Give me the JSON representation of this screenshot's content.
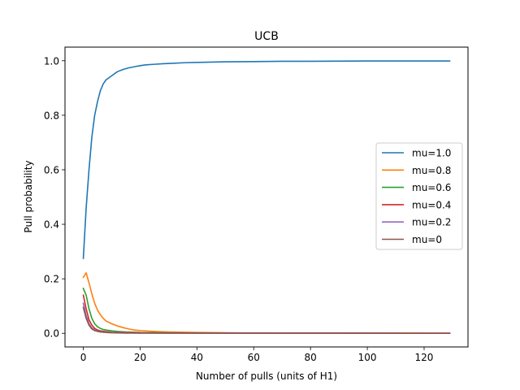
{
  "chart_data": {
    "type": "line",
    "title": "UCB",
    "xlabel": "Number of pulls (units of H1)",
    "ylabel": "Pull probability",
    "xlim": [
      -6.45,
      135.45
    ],
    "ylim": [
      -0.05,
      1.05
    ],
    "xticks": [
      0,
      20,
      40,
      60,
      80,
      100,
      120
    ],
    "yticks": [
      0.0,
      0.2,
      0.4,
      0.6,
      0.8,
      1.0
    ],
    "xtick_labels": [
      "0",
      "20",
      "40",
      "60",
      "80",
      "100",
      "120"
    ],
    "ytick_labels": [
      "0.0",
      "0.2",
      "0.4",
      "0.6",
      "0.8",
      "1.0"
    ],
    "grid": false,
    "legend_position": "center-right",
    "series": [
      {
        "name": "mu=1.0",
        "color": "#1f77b4",
        "points": [
          [
            0,
            0.275
          ],
          [
            1,
            0.46
          ],
          [
            2,
            0.6
          ],
          [
            3,
            0.72
          ],
          [
            4,
            0.8
          ],
          [
            5,
            0.85
          ],
          [
            6,
            0.89
          ],
          [
            7,
            0.915
          ],
          [
            8,
            0.93
          ],
          [
            10,
            0.945
          ],
          [
            12,
            0.96
          ],
          [
            14,
            0.968
          ],
          [
            16,
            0.974
          ],
          [
            18,
            0.978
          ],
          [
            20,
            0.982
          ],
          [
            22,
            0.985
          ],
          [
            25,
            0.987
          ],
          [
            28,
            0.989
          ],
          [
            32,
            0.991
          ],
          [
            36,
            0.993
          ],
          [
            40,
            0.994
          ],
          [
            45,
            0.995
          ],
          [
            50,
            0.996
          ],
          [
            60,
            0.997
          ],
          [
            70,
            0.998
          ],
          [
            80,
            0.998
          ],
          [
            100,
            0.999
          ],
          [
            129,
            0.999
          ]
        ]
      },
      {
        "name": "mu=0.8",
        "color": "#ff7f0e",
        "points": [
          [
            0,
            0.205
          ],
          [
            1,
            0.222
          ],
          [
            2,
            0.185
          ],
          [
            3,
            0.145
          ],
          [
            4,
            0.11
          ],
          [
            5,
            0.085
          ],
          [
            6,
            0.068
          ],
          [
            7,
            0.055
          ],
          [
            8,
            0.045
          ],
          [
            10,
            0.035
          ],
          [
            12,
            0.027
          ],
          [
            14,
            0.021
          ],
          [
            16,
            0.016
          ],
          [
            18,
            0.012
          ],
          [
            20,
            0.01
          ],
          [
            25,
            0.007
          ],
          [
            30,
            0.005
          ],
          [
            40,
            0.003
          ],
          [
            50,
            0.002
          ],
          [
            60,
            0.001
          ],
          [
            80,
            0.001
          ],
          [
            100,
            0.001
          ],
          [
            129,
            0.0
          ]
        ]
      },
      {
        "name": "mu=0.6",
        "color": "#2ca02c",
        "points": [
          [
            0,
            0.165
          ],
          [
            1,
            0.14
          ],
          [
            2,
            0.09
          ],
          [
            3,
            0.055
          ],
          [
            4,
            0.035
          ],
          [
            5,
            0.024
          ],
          [
            6,
            0.018
          ],
          [
            7,
            0.014
          ],
          [
            8,
            0.012
          ],
          [
            10,
            0.009
          ],
          [
            12,
            0.007
          ],
          [
            15,
            0.005
          ],
          [
            20,
            0.003
          ],
          [
            30,
            0.002
          ],
          [
            40,
            0.001
          ],
          [
            60,
            0.001
          ],
          [
            129,
            0.0
          ]
        ]
      },
      {
        "name": "mu=0.4",
        "color": "#d62728",
        "points": [
          [
            0,
            0.14
          ],
          [
            1,
            0.09
          ],
          [
            2,
            0.05
          ],
          [
            3,
            0.03
          ],
          [
            4,
            0.018
          ],
          [
            5,
            0.012
          ],
          [
            6,
            0.009
          ],
          [
            8,
            0.006
          ],
          [
            10,
            0.004
          ],
          [
            15,
            0.003
          ],
          [
            20,
            0.002
          ],
          [
            30,
            0.001
          ],
          [
            129,
            0.0
          ]
        ]
      },
      {
        "name": "mu=0.2",
        "color": "#9467bd",
        "points": [
          [
            0,
            0.11
          ],
          [
            1,
            0.065
          ],
          [
            2,
            0.035
          ],
          [
            3,
            0.02
          ],
          [
            4,
            0.012
          ],
          [
            5,
            0.008
          ],
          [
            6,
            0.006
          ],
          [
            8,
            0.004
          ],
          [
            10,
            0.003
          ],
          [
            15,
            0.002
          ],
          [
            20,
            0.001
          ],
          [
            129,
            0.0
          ]
        ]
      },
      {
        "name": "mu=0",
        "color": "#8c564b",
        "points": [
          [
            0,
            0.095
          ],
          [
            1,
            0.055
          ],
          [
            2,
            0.03
          ],
          [
            3,
            0.016
          ],
          [
            4,
            0.01
          ],
          [
            5,
            0.007
          ],
          [
            6,
            0.005
          ],
          [
            8,
            0.003
          ],
          [
            10,
            0.002
          ],
          [
            15,
            0.001
          ],
          [
            129,
            0.0
          ]
        ]
      }
    ]
  }
}
